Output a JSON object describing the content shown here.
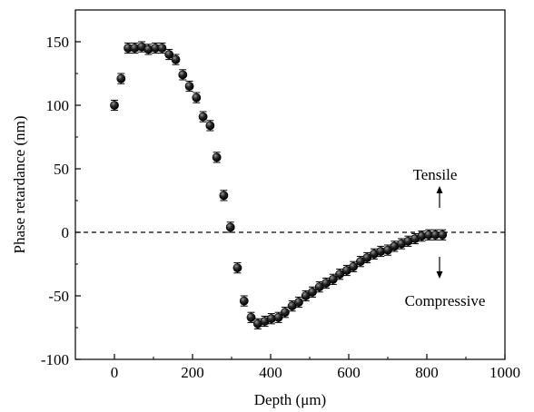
{
  "chart_data": {
    "type": "scatter",
    "title": "",
    "xlabel": "Depth (μm)",
    "ylabel": "Phase retardance (nm)",
    "xlim": [
      -100,
      1000
    ],
    "ylim": [
      -100,
      175
    ],
    "xticks": [
      0,
      200,
      400,
      600,
      800,
      1000
    ],
    "yticks": [
      -100,
      -50,
      0,
      50,
      100,
      150
    ],
    "xtick_labels": [
      "0",
      "200",
      "400",
      "600",
      "800",
      "1000"
    ],
    "ytick_labels": [
      "-100",
      "-50",
      "0",
      "50",
      "100",
      "150"
    ],
    "reference_line": {
      "y": 0,
      "style": "dashed"
    },
    "annotations": [
      {
        "text": "Tensile",
        "arrow": "up"
      },
      {
        "text": "Compressive",
        "arrow": "down"
      }
    ],
    "series": [
      {
        "marker": "filled-circle",
        "error_bars": true,
        "points": [
          {
            "x": 0,
            "y": 100,
            "err": 4
          },
          {
            "x": 17,
            "y": 121,
            "err": 4
          },
          {
            "x": 35,
            "y": 145,
            "err": 4
          },
          {
            "x": 52,
            "y": 145,
            "err": 4
          },
          {
            "x": 70,
            "y": 146,
            "err": 4
          },
          {
            "x": 87,
            "y": 144,
            "err": 4
          },
          {
            "x": 105,
            "y": 145,
            "err": 4
          },
          {
            "x": 122,
            "y": 145,
            "err": 4
          },
          {
            "x": 140,
            "y": 140,
            "err": 4
          },
          {
            "x": 157,
            "y": 136,
            "err": 4
          },
          {
            "x": 175,
            "y": 124,
            "err": 4
          },
          {
            "x": 192,
            "y": 115,
            "err": 4
          },
          {
            "x": 210,
            "y": 106,
            "err": 4
          },
          {
            "x": 227,
            "y": 91,
            "err": 4
          },
          {
            "x": 245,
            "y": 84,
            "err": 4
          },
          {
            "x": 262,
            "y": 59,
            "err": 4
          },
          {
            "x": 280,
            "y": 29,
            "err": 4
          },
          {
            "x": 297,
            "y": 4,
            "err": 4
          },
          {
            "x": 315,
            "y": -28,
            "err": 4
          },
          {
            "x": 332,
            "y": -54,
            "err": 4
          },
          {
            "x": 350,
            "y": -67,
            "err": 4
          },
          {
            "x": 367,
            "y": -72,
            "err": 4
          },
          {
            "x": 385,
            "y": -70,
            "err": 4
          },
          {
            "x": 402,
            "y": -68,
            "err": 4
          },
          {
            "x": 420,
            "y": -67,
            "err": 4
          },
          {
            "x": 437,
            "y": -63,
            "err": 4
          },
          {
            "x": 455,
            "y": -58,
            "err": 4
          },
          {
            "x": 472,
            "y": -55,
            "err": 4
          },
          {
            "x": 490,
            "y": -50,
            "err": 4
          },
          {
            "x": 507,
            "y": -47,
            "err": 4
          },
          {
            "x": 525,
            "y": -43,
            "err": 4
          },
          {
            "x": 542,
            "y": -40,
            "err": 4
          },
          {
            "x": 560,
            "y": -37,
            "err": 4
          },
          {
            "x": 577,
            "y": -33,
            "err": 4
          },
          {
            "x": 595,
            "y": -30,
            "err": 4
          },
          {
            "x": 612,
            "y": -27,
            "err": 4
          },
          {
            "x": 630,
            "y": -23,
            "err": 4
          },
          {
            "x": 647,
            "y": -20,
            "err": 4
          },
          {
            "x": 665,
            "y": -17,
            "err": 4
          },
          {
            "x": 682,
            "y": -15,
            "err": 4
          },
          {
            "x": 700,
            "y": -14,
            "err": 4
          },
          {
            "x": 717,
            "y": -11,
            "err": 4
          },
          {
            "x": 735,
            "y": -9,
            "err": 4
          },
          {
            "x": 752,
            "y": -7,
            "err": 4
          },
          {
            "x": 770,
            "y": -5,
            "err": 4
          },
          {
            "x": 787,
            "y": -3,
            "err": 4
          },
          {
            "x": 805,
            "y": -2,
            "err": 4
          },
          {
            "x": 822,
            "y": -2,
            "err": 4
          },
          {
            "x": 840,
            "y": -2,
            "err": 4
          }
        ]
      }
    ]
  }
}
